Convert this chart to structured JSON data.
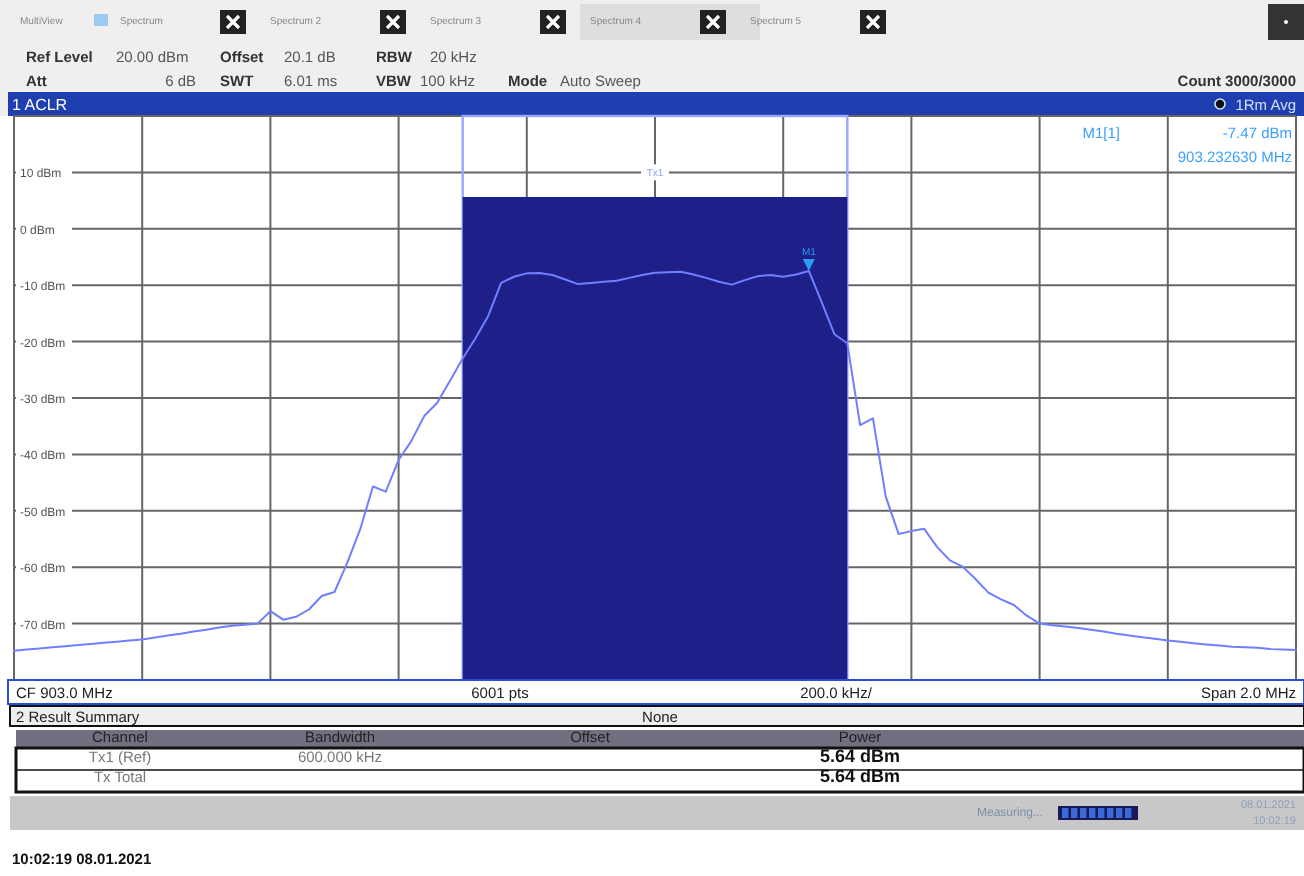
{
  "chart_data": {
    "type": "line",
    "title": "1 ACLR",
    "categories": [
      null,
      null,
      null,
      null,
      null,
      null,
      null,
      null,
      null,
      null,
      null,
      null,
      null,
      null,
      null,
      null,
      null,
      null,
      null,
      null,
      null,
      null,
      null,
      null,
      null,
      null,
      null,
      null,
      null,
      null,
      null,
      null,
      null,
      null,
      null,
      null,
      null,
      null,
      null,
      null,
      null,
      null,
      null,
      null,
      null,
      null,
      null,
      null,
      null,
      null,
      null,
      null,
      null,
      null,
      null,
      null,
      null,
      null,
      null,
      null,
      null,
      null,
      null,
      null,
      null,
      null,
      null,
      null,
      null,
      null,
      null,
      null,
      null,
      null,
      null,
      null,
      null,
      null,
      null,
      null,
      null,
      null,
      null,
      null,
      null,
      null,
      null,
      null,
      null,
      null,
      null,
      null,
      null,
      null,
      null,
      null,
      null,
      null,
      null,
      null,
      null
    ],
    "ylim": [
      -80,
      20
    ],
    "yticks": [
      {
        "value": 20,
        "label": null
      },
      {
        "value": 10,
        "label": "10 dBm"
      },
      {
        "value": 0,
        "label": "0 dBm"
      },
      {
        "value": -10,
        "label": "-10 dBm"
      },
      {
        "value": -20,
        "label": "-20 dBm"
      },
      {
        "value": -30,
        "label": "-30 dBm"
      },
      {
        "value": -40,
        "label": "-40 dBm"
      },
      {
        "value": -50,
        "label": "-50 dBm"
      },
      {
        "value": -60,
        "label": "-60 dBm"
      },
      {
        "value": -70,
        "label": "-70 dBm"
      },
      {
        "value": -80,
        "label": null
      }
    ],
    "tick_labels": "y",
    "grid": true,
    "series": [
      {
        "color": "#6f7fff",
        "values": [
          -74.8,
          -74.6,
          -74.4,
          -74.2,
          -74.0,
          -73.8,
          -73.6,
          -73.4,
          -73.2,
          -73.0,
          -72.8,
          -72.45,
          -72.1,
          -71.8,
          -71.4,
          -71.1,
          -70.7,
          -70.4,
          -70.2,
          -70.0,
          -67.8,
          -69.3,
          -68.8,
          -67.5,
          -65.1,
          -64.4,
          -59.2,
          -53.3,
          -45.7,
          -46.6,
          -41.0,
          -37.6,
          -33.2,
          -30.9,
          -27.0,
          -23.0,
          -19.4,
          -15.4,
          -9.6,
          -8.5,
          -7.9,
          -7.85,
          -8.2,
          -9.0,
          -9.8,
          -9.6,
          -9.4,
          -9.2,
          -8.7,
          -8.2,
          -7.8,
          -7.7,
          -7.6,
          -8.1,
          -8.7,
          -9.4,
          -9.9,
          -9.1,
          -8.4,
          -8.2,
          -8.5,
          -8.1,
          -7.47,
          -13.0,
          -18.7,
          -20.3,
          -34.8,
          -33.6,
          -47.5,
          -54.1,
          -53.6,
          -53.2,
          -56.4,
          -58.8,
          -59.9,
          -62.1,
          -64.5,
          -65.7,
          -66.7,
          -68.6,
          -70.0,
          -70.3,
          -70.5,
          -70.8,
          -71.1,
          -71.4,
          -71.8,
          -72.1,
          -72.4,
          -72.7,
          -73.0,
          -73.2,
          -73.5,
          -73.7,
          -73.9,
          -74.1,
          -74.2,
          -74.3,
          -74.5,
          -74.6,
          -74.7
        ]
      }
    ],
    "annotations": [
      "MultiView",
      "Spectrum",
      "Spectrum 2",
      "Spectrum 3",
      "Spectrum 4",
      "Spectrum 5",
      "Ref Level",
      "20.00 dBm",
      "Offset",
      "20.1 dB",
      "RBW",
      "20 kHz",
      "Att",
      "6 dB",
      "SWT",
      "6.01 ms",
      "VBW",
      "100 kHz",
      "Mode",
      "Auto Sweep",
      "Count 3000/3000",
      "1Rm Avg",
      "M1[1]",
      "-7.47 dBm",
      "903.232630 MHz",
      {
        "text": "M1",
        "y": -7.47
      },
      "CF 903.0 MHz",
      "6001 pts",
      "200.0 kHz/",
      "Span 2.0 MHz",
      "2 Result Summary",
      "None",
      "Channel",
      "Bandwidth",
      "Offset",
      "Power",
      "Tx1 (Ref)",
      "600.000 kHz",
      "5.64 dBm",
      "Tx Total",
      "5.64 dBm",
      "Measuring...",
      "08.01.2021",
      "10:02:19",
      "10:02:19 08.01.2021",
      "Tx1"
    ]
  }
}
